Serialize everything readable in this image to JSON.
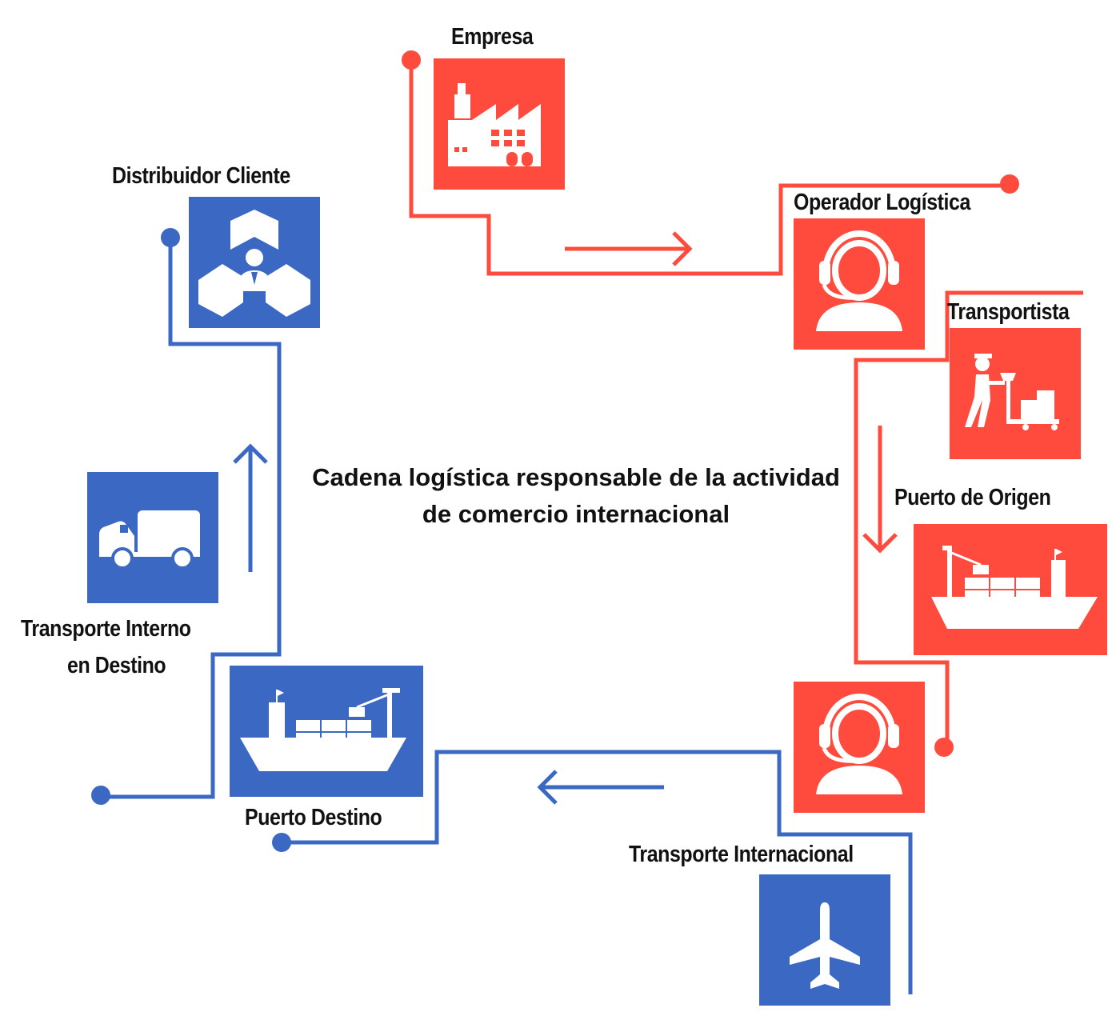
{
  "title_lines": [
    "Cadena logística responsable de la actividad",
    "de comercio internacional"
  ],
  "colors": {
    "red": "#ff4b3e",
    "blue": "#3a68c2"
  },
  "nodes": {
    "empresa": {
      "label": "Empresa",
      "icon": "factory-icon"
    },
    "operador": {
      "label": "Operador Logística",
      "icon": "headset-operator-icon"
    },
    "transportista": {
      "label": "Transportista",
      "icon": "hand-truck-worker-icon"
    },
    "puerto_origen": {
      "label": "Puerto de Origen",
      "icon": "cargo-ship-icon"
    },
    "operador2": {
      "label": "",
      "icon": "headset-operator-icon"
    },
    "transporte_internacional": {
      "label": "Transporte Internacional",
      "icon": "airplane-icon"
    },
    "puerto_destino": {
      "label": "Puerto Destino",
      "icon": "cargo-ship-icon"
    },
    "transporte_interno": {
      "label_lines": [
        "Transporte Interno",
        "en Destino"
      ],
      "icon": "truck-icon"
    },
    "distribuidor": {
      "label": "Distribuidor Cliente",
      "icon": "distributor-client-icon"
    }
  }
}
